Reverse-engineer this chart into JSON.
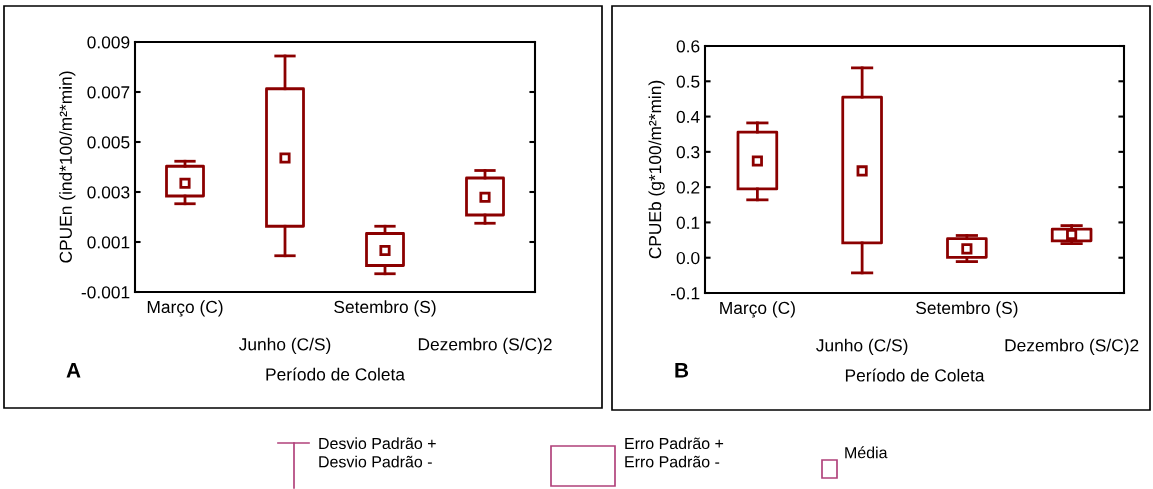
{
  "chart_data": [
    {
      "type": "box",
      "xlabel": "Período de Coleta",
      "ylabel": "CPUEn (ind*100/m²*min)",
      "color": "#8b0000",
      "categories": [
        "Março (C)",
        "Junho (C/S)",
        "Setembro (S)",
        "Dezembro (S/C)2"
      ],
      "boxes": [
        {
          "low": 0.00253,
          "q1": 0.00284,
          "median": 0.00335,
          "q3": 0.00403,
          "high": 0.00423
        },
        {
          "low": 0.00045,
          "q1": 0.00163,
          "median": 0.00436,
          "q3": 0.00713,
          "high": 0.00844
        },
        {
          "low": -0.00027,
          "q1": 6e-05,
          "median": 0.00066,
          "q3": 0.00134,
          "high": 0.00163
        },
        {
          "low": 0.00175,
          "q1": 0.00208,
          "median": 0.00279,
          "q3": 0.00356,
          "high": 0.00386
        }
      ],
      "ylim": [
        -0.001,
        0.009
      ],
      "yticks": [
        {
          "value": -0.001,
          "label": "-0.001"
        },
        0.001,
        0.003,
        0.005,
        0.007,
        0.009
      ],
      "annotations": [
        "A",
        "Desvio Padrão +\nDesvio Padrão -",
        "Erro Padrão +\nErro Padrão -",
        "Média"
      ]
    },
    {
      "type": "box",
      "xlabel": "Período de Coleta",
      "ylabel": "CPUEb (g*100/m²*min)",
      "color": "#8b0000",
      "categories": [
        "Março (C)",
        "Junho (C/S)",
        "Setembro (S)",
        "Dezembro (S/C)2"
      ],
      "boxes": [
        {
          "low": 0.164,
          "q1": 0.195,
          "median": 0.274,
          "q3": 0.356,
          "high": 0.382
        },
        {
          "low": -0.043,
          "q1": 0.042,
          "median": 0.246,
          "q3": 0.455,
          "high": 0.538
        },
        {
          "low": -0.011,
          "q1": 0.001,
          "median": 0.025,
          "q3": 0.054,
          "high": 0.063
        },
        {
          "low": 0.04,
          "q1": 0.048,
          "median": 0.066,
          "q3": 0.081,
          "high": 0.091
        }
      ],
      "ylim": [
        -0.1,
        0.6
      ],
      "yticks": [
        {
          "value": -0.1,
          "label": "-0.1"
        },
        {
          "value": 0.0,
          "label": "0.0"
        },
        0.1,
        0.2,
        0.3,
        0.4,
        0.5,
        0.6
      ],
      "annotations": [
        "B"
      ]
    }
  ]
}
